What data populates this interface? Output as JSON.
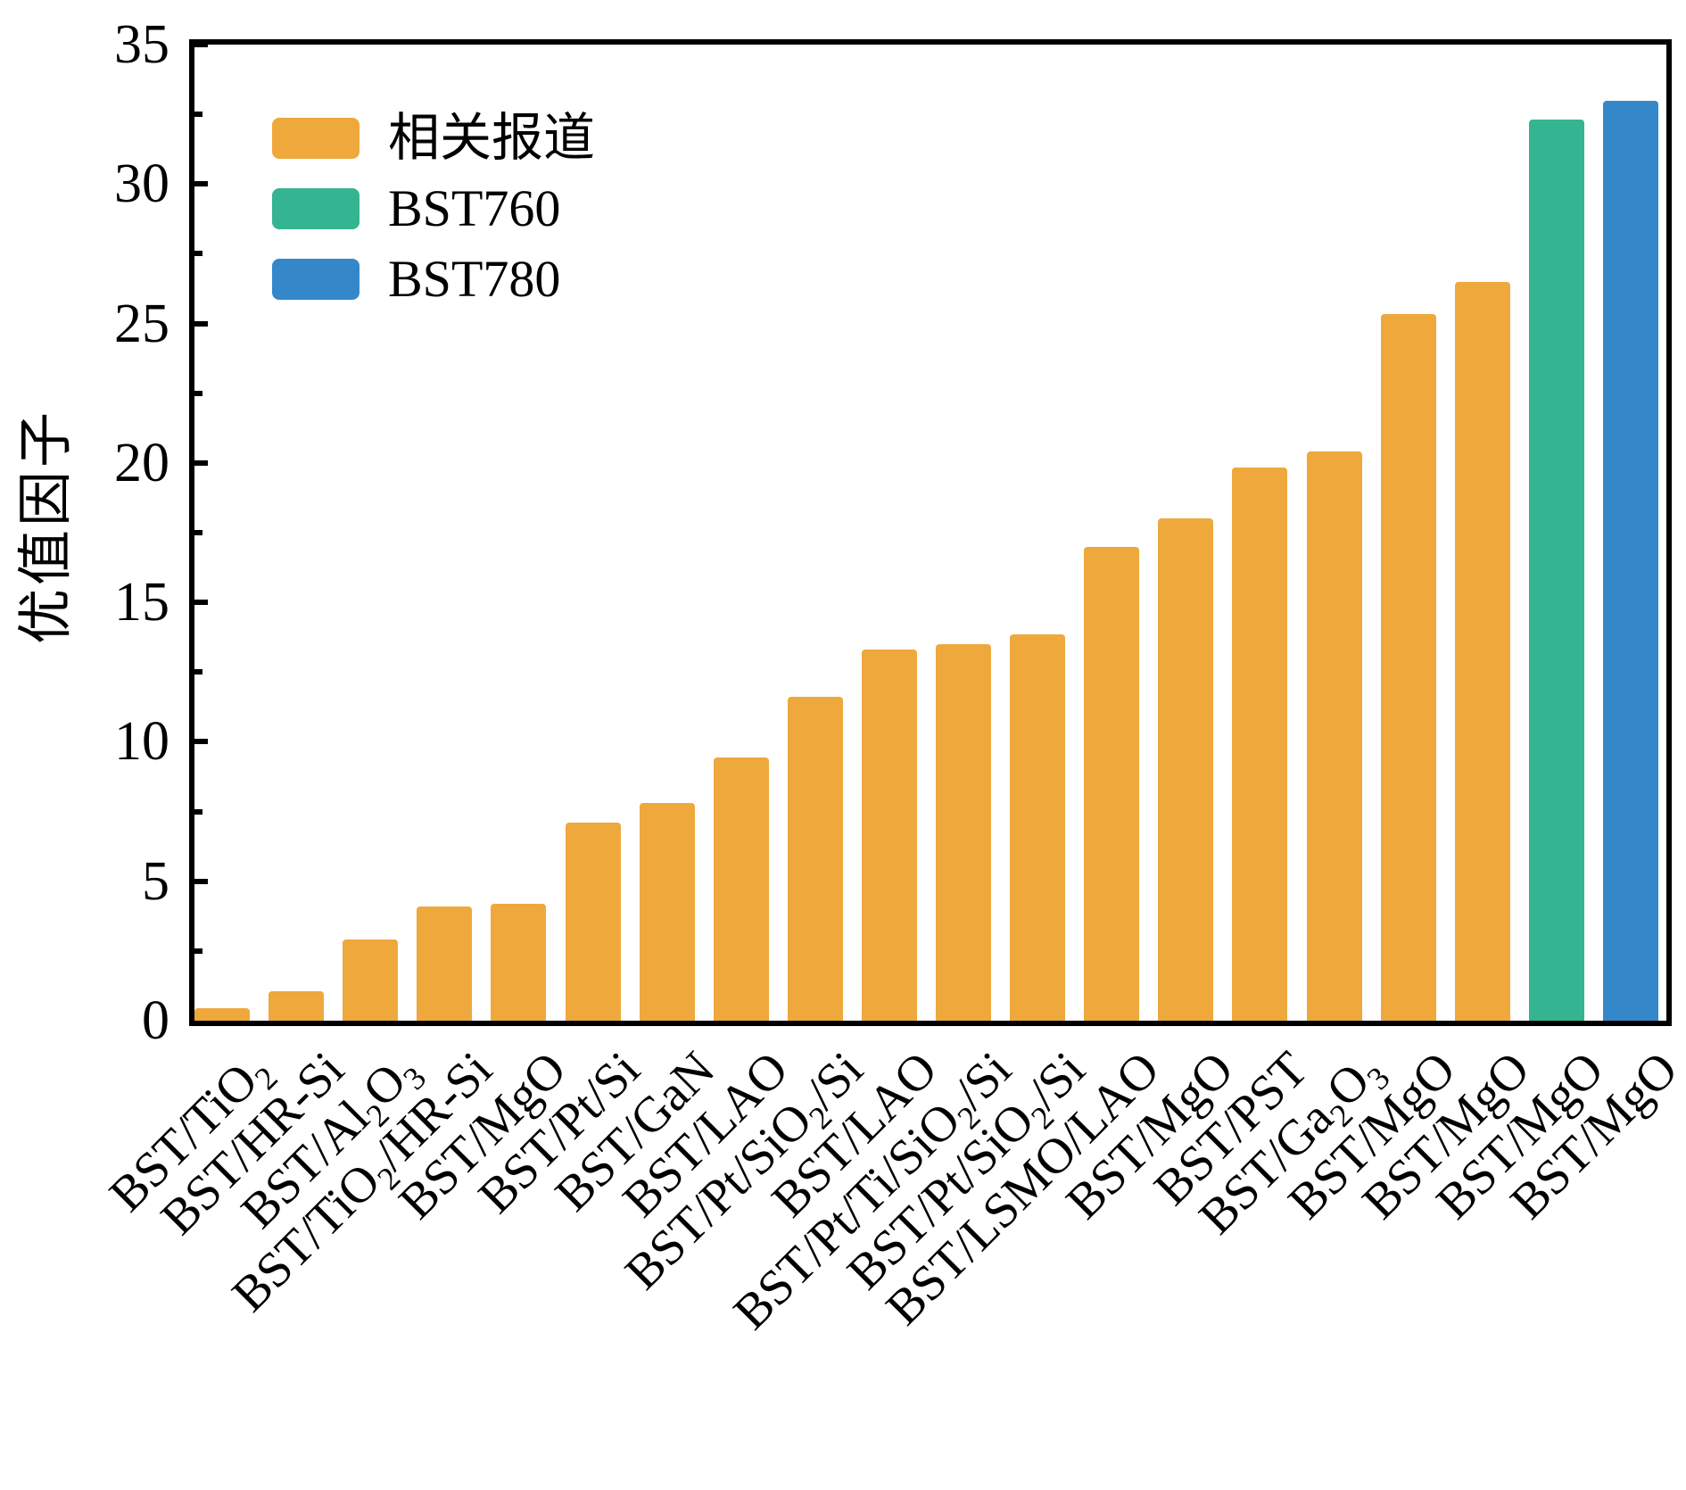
{
  "chart_data": {
    "type": "bar",
    "title": "",
    "ylabel": "优值因子",
    "xlabel": "",
    "ylim": [
      0,
      35
    ],
    "yticks_major": [
      0,
      5,
      10,
      15,
      20,
      25,
      30,
      35
    ],
    "yticks_minor": [
      2.5,
      7.5,
      12.5,
      17.5,
      22.5,
      27.5,
      32.5
    ],
    "grid": false,
    "legend_position": "upper-left-inside",
    "categories": [
      "BST/TiO₂",
      "BST/HR-Si",
      "BST/Al₂O₃",
      "BST/TiO₂/HR-Si",
      "BST/MgO",
      "BST/Pt/Si",
      "BST/GaN",
      "BST/LAO",
      "BST/Pt/SiO₂/Si",
      "BST/LAO",
      "BST/Pt/Ti/SiO₂/Si",
      "BST/Pt/SiO₂/Si",
      "BST/LSMO/LAO",
      "BST/MgO",
      "BST/PST",
      "BST/Ga₂O₃",
      "BST/MgO",
      "BST/MgO",
      "BST/MgO",
      "BST/MgO"
    ],
    "values": [
      0.45,
      1.05,
      2.9,
      4.1,
      4.2,
      7.1,
      7.8,
      9.45,
      11.6,
      13.3,
      13.5,
      13.85,
      17.0,
      18.0,
      19.85,
      20.4,
      25.35,
      26.5,
      32.3,
      33.0
    ],
    "bar_series": [
      "related",
      "related",
      "related",
      "related",
      "related",
      "related",
      "related",
      "related",
      "related",
      "related",
      "related",
      "related",
      "related",
      "related",
      "related",
      "related",
      "related",
      "related",
      "bst760",
      "bst780"
    ],
    "series": [
      {
        "id": "related",
        "label": "相关报道",
        "color": "#EEA83C"
      },
      {
        "id": "bst760",
        "label": "BST760",
        "color": "#35B491"
      },
      {
        "id": "bst780",
        "label": "BST780",
        "color": "#3488C9"
      }
    ],
    "axis_color": "#000000"
  }
}
